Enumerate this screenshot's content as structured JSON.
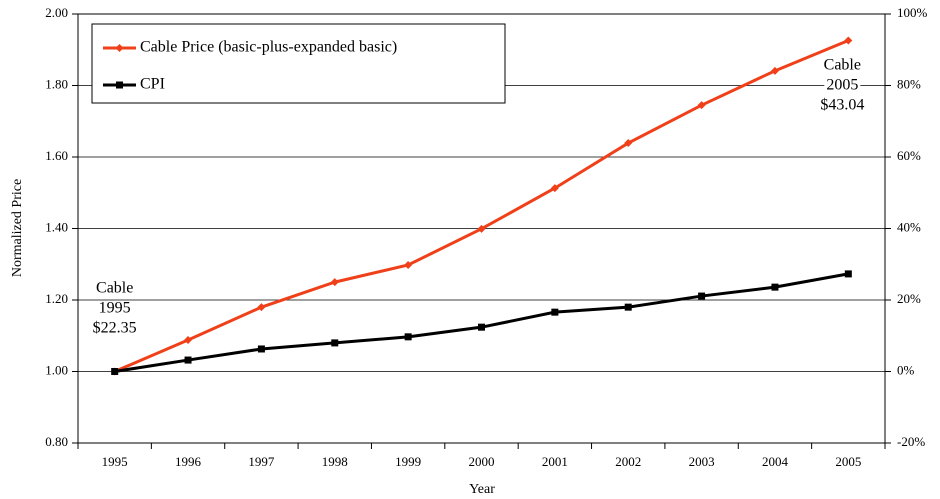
{
  "chart_data": {
    "type": "line",
    "x_label": "Year",
    "y_label": "Normalized Price",
    "categories": [
      "1995",
      "1996",
      "1997",
      "1998",
      "1999",
      "2000",
      "2001",
      "2002",
      "2003",
      "2004",
      "2005"
    ],
    "series": [
      {
        "name": "Cable Price (basic-plus-expanded basic)",
        "color": "#f0401a",
        "marker": "diamond",
        "values": [
          1.0,
          1.088,
          1.18,
          1.25,
          1.298,
          1.399,
          1.513,
          1.639,
          1.745,
          1.841,
          1.926
        ]
      },
      {
        "name": "CPI",
        "color": "#000000",
        "marker": "square",
        "values": [
          1.0,
          1.032,
          1.063,
          1.08,
          1.097,
          1.124,
          1.166,
          1.18,
          1.211,
          1.236,
          1.273
        ]
      }
    ],
    "ylim": [
      0.8,
      2.0
    ],
    "yticks": [
      {
        "value": 0.8,
        "label": "0.80"
      },
      {
        "value": 1.0,
        "label": "1.00"
      },
      {
        "value": 1.2,
        "label": "1.20"
      },
      {
        "value": 1.4,
        "label": "1.40"
      },
      {
        "value": 1.6,
        "label": "1.60"
      },
      {
        "value": 1.8,
        "label": "1.80"
      },
      {
        "value": 2.0,
        "label": "2.00"
      }
    ],
    "y2lim": [
      -20,
      100
    ],
    "y2ticks": [
      {
        "value": -20,
        "label": "-20%"
      },
      {
        "value": 0,
        "label": "0%"
      },
      {
        "value": 20,
        "label": "20%"
      },
      {
        "value": 40,
        "label": "40%"
      },
      {
        "value": 60,
        "label": "60%"
      },
      {
        "value": 80,
        "label": "80%"
      },
      {
        "value": 100,
        "label": "100%"
      }
    ],
    "grid": true,
    "legend": "upper left",
    "annotations": [
      {
        "category": "1995",
        "lines": [
          "Cable",
          "1995",
          "$22.35"
        ]
      },
      {
        "category": "2005",
        "lines": [
          "Cable",
          "2005",
          "$43.04"
        ]
      }
    ]
  }
}
